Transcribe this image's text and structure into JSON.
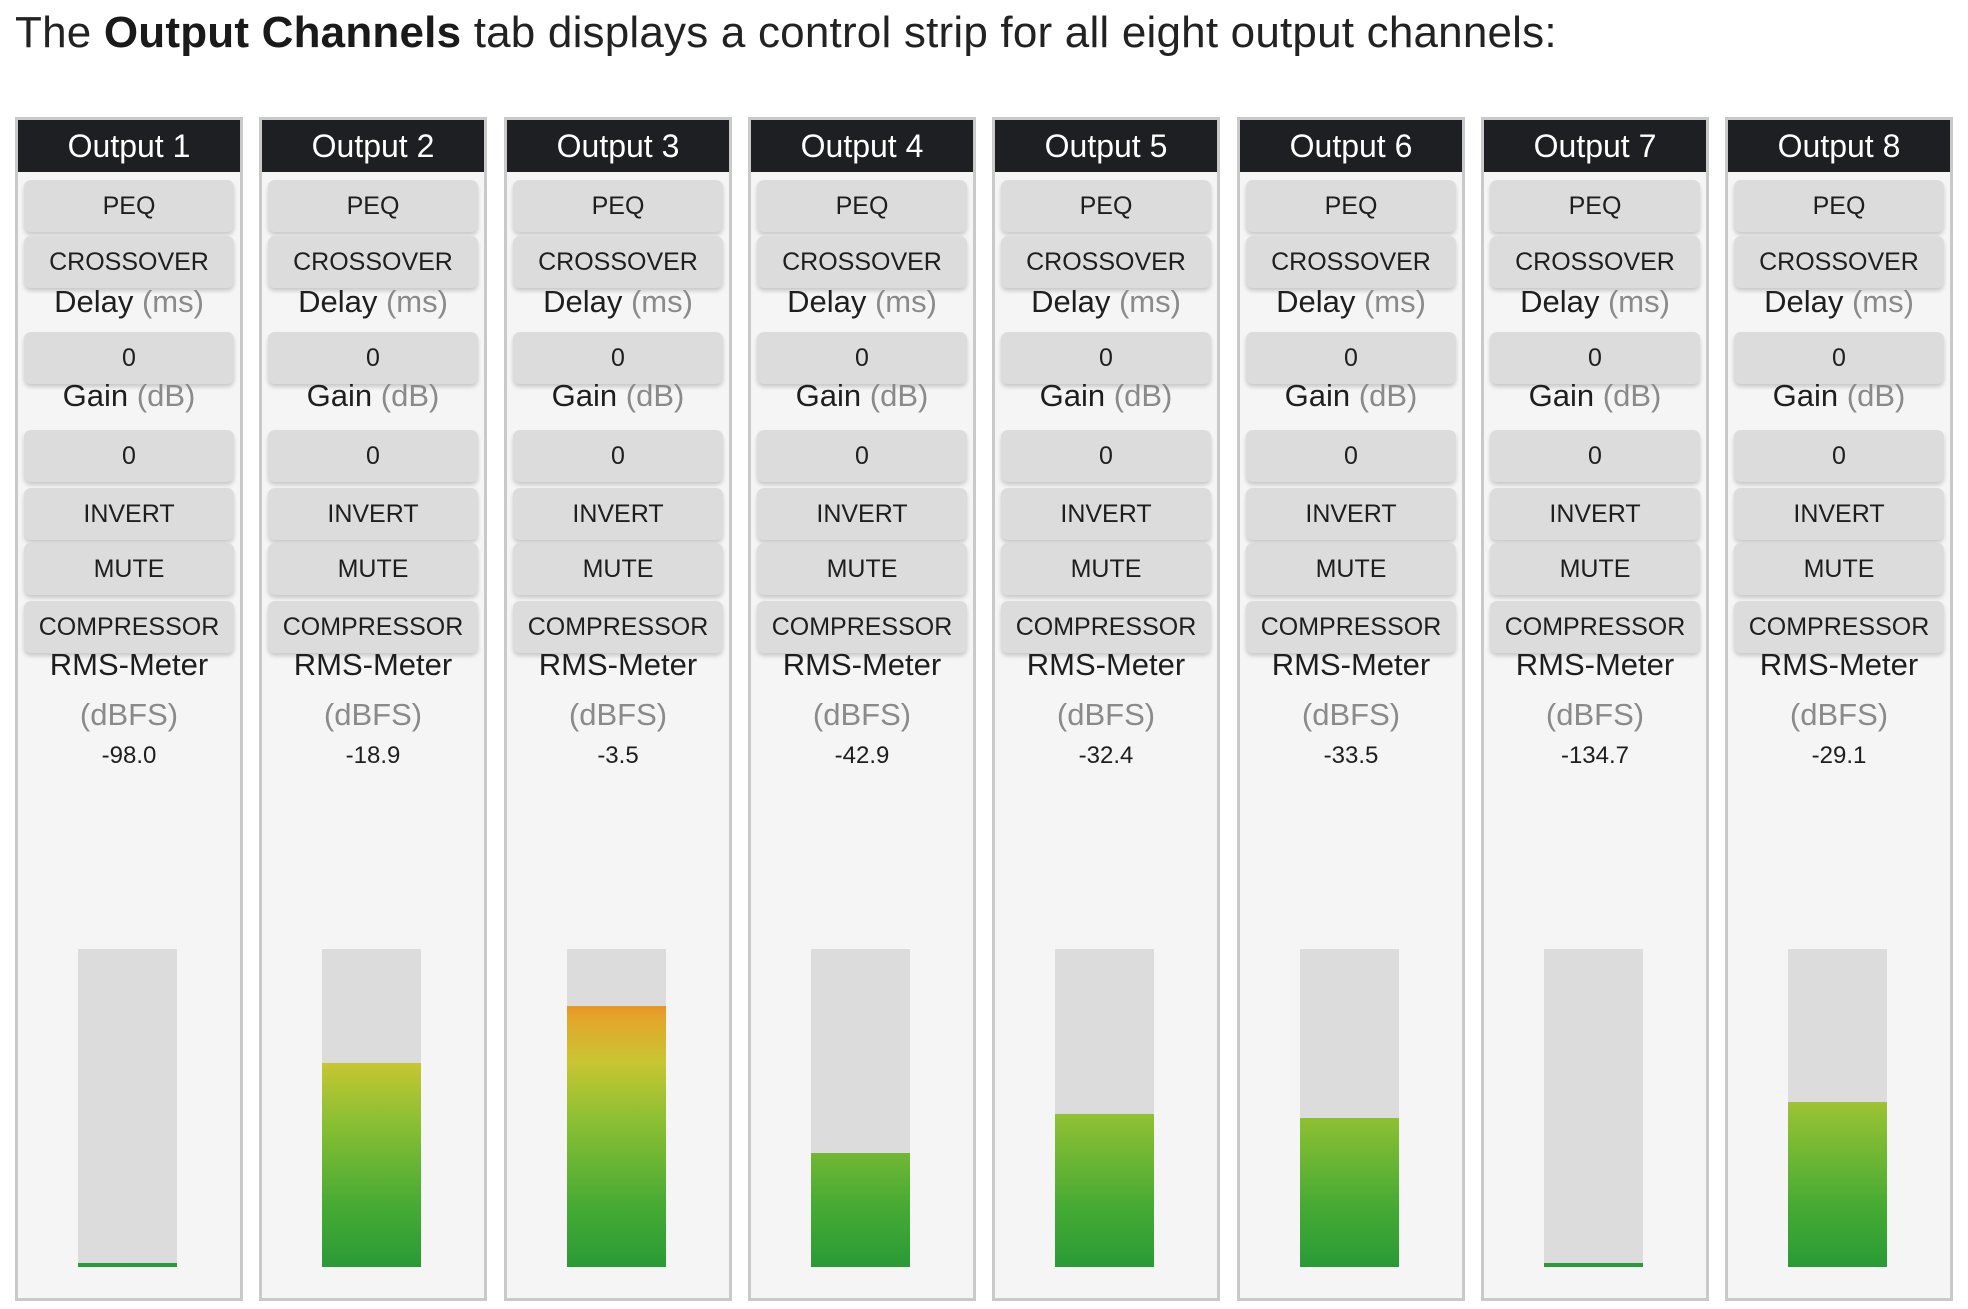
{
  "intro": {
    "prefix": "The ",
    "bold": "Output Channels",
    "suffix": " tab displays a control strip for all eight output channels:"
  },
  "labels": {
    "peq": "PEQ",
    "crossover": "CROSSOVER",
    "delay": "Delay",
    "delay_unit": "(ms)",
    "gain": "Gain",
    "gain_unit": "(dB)",
    "invert": "INVERT",
    "mute": "MUTE",
    "compressor": "COMPRESSOR",
    "rms_meter": "RMS-Meter",
    "rms_unit": "(dBFS)"
  },
  "meter_range_dbfs": [
    -98,
    0
  ],
  "colors": {
    "header_bg": "#1e1f23",
    "strip_bg": "#f6f5f5",
    "button_bg": "#dcdcdc",
    "meter_green": "#2a9a36",
    "meter_yellow": "#c8c632",
    "meter_orange": "#e9502a"
  },
  "channels": [
    {
      "title": "Output 1",
      "delay": "0",
      "gain": "0",
      "rms": "-98.0",
      "level": 0.01
    },
    {
      "title": "Output 2",
      "delay": "0",
      "gain": "0",
      "rms": "-18.9",
      "level": 0.64
    },
    {
      "title": "Output 3",
      "delay": "0",
      "gain": "0",
      "rms": "-3.5",
      "level": 0.82
    },
    {
      "title": "Output 4",
      "delay": "0",
      "gain": "0",
      "rms": "-42.9",
      "level": 0.36
    },
    {
      "title": "Output 5",
      "delay": "0",
      "gain": "0",
      "rms": "-32.4",
      "level": 0.48
    },
    {
      "title": "Output 6",
      "delay": "0",
      "gain": "0",
      "rms": "-33.5",
      "level": 0.47
    },
    {
      "title": "Output 7",
      "delay": "0",
      "gain": "0",
      "rms": "-134.7",
      "level": 0.01
    },
    {
      "title": "Output 8",
      "delay": "0",
      "gain": "0",
      "rms": "-29.1",
      "level": 0.52
    }
  ]
}
